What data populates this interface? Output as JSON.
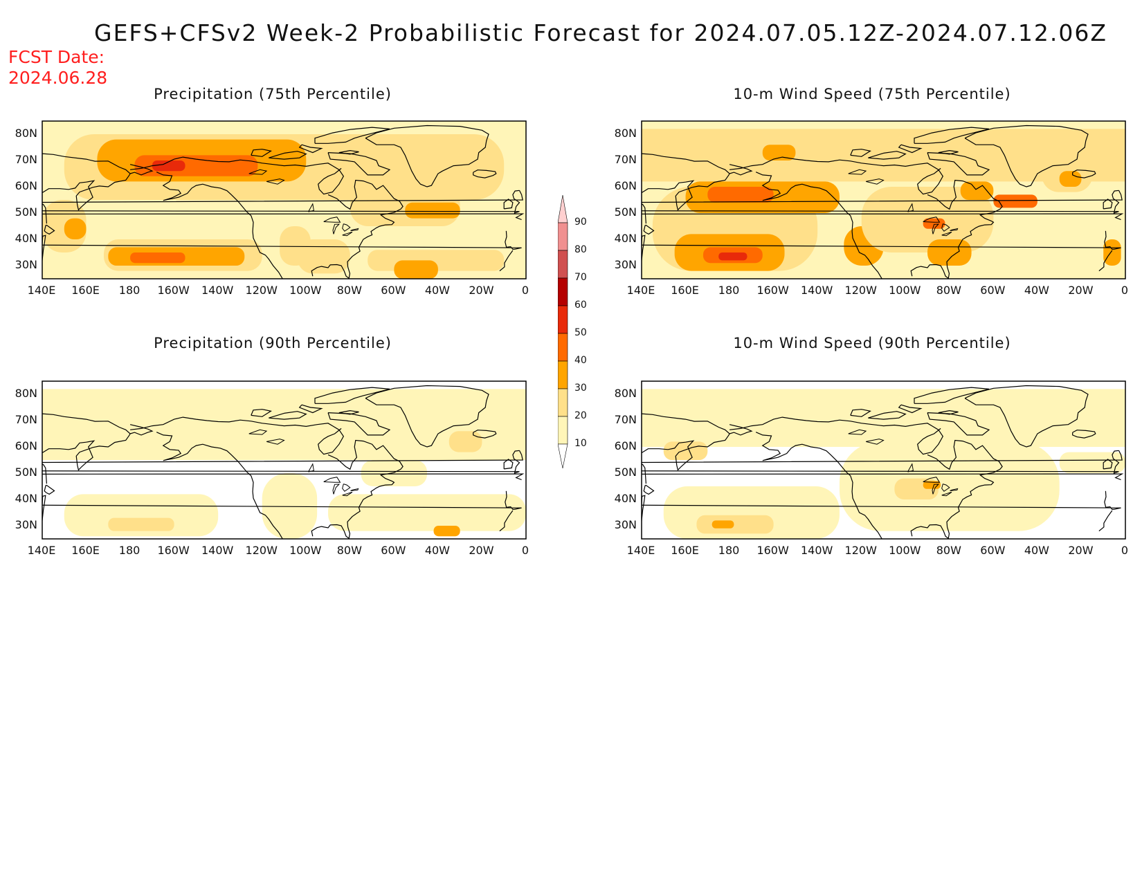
{
  "title": "GEFS+CFSv2 Week-2 Probabilistic Forecast for 2024.07.05.12Z-2024.07.12.06Z",
  "fcst_date_label": "FCST Date:",
  "fcst_date": "2024.06.28",
  "panels": [
    {
      "title": "Precipitation (75th Percentile)",
      "variable": "precipitation",
      "percentile": 75
    },
    {
      "title": "10-m Wind Speed (75th Percentile)",
      "variable": "wind",
      "percentile": 75
    },
    {
      "title": "Precipitation (90th Percentile)",
      "variable": "precipitation",
      "percentile": 90
    },
    {
      "title": "10-m Wind Speed (90th Percentile)",
      "variable": "wind",
      "percentile": 90
    }
  ],
  "lat_labels": [
    "80N",
    "70N",
    "60N",
    "50N",
    "40N",
    "30N"
  ],
  "lon_labels": [
    "140E",
    "160E",
    "180",
    "160W",
    "140W",
    "120W",
    "100W",
    "80W",
    "60W",
    "40W",
    "20W",
    "0"
  ],
  "colorbar": {
    "levels": [
      "10",
      "20",
      "30",
      "40",
      "50",
      "60",
      "70",
      "80",
      "90"
    ],
    "colors": [
      "#fff5b8",
      "#ffe08a",
      "#ffa500",
      "#ff6a00",
      "#e82a0a",
      "#b40000",
      "#d05050",
      "#f09090",
      "#ffd0d0"
    ]
  }
}
